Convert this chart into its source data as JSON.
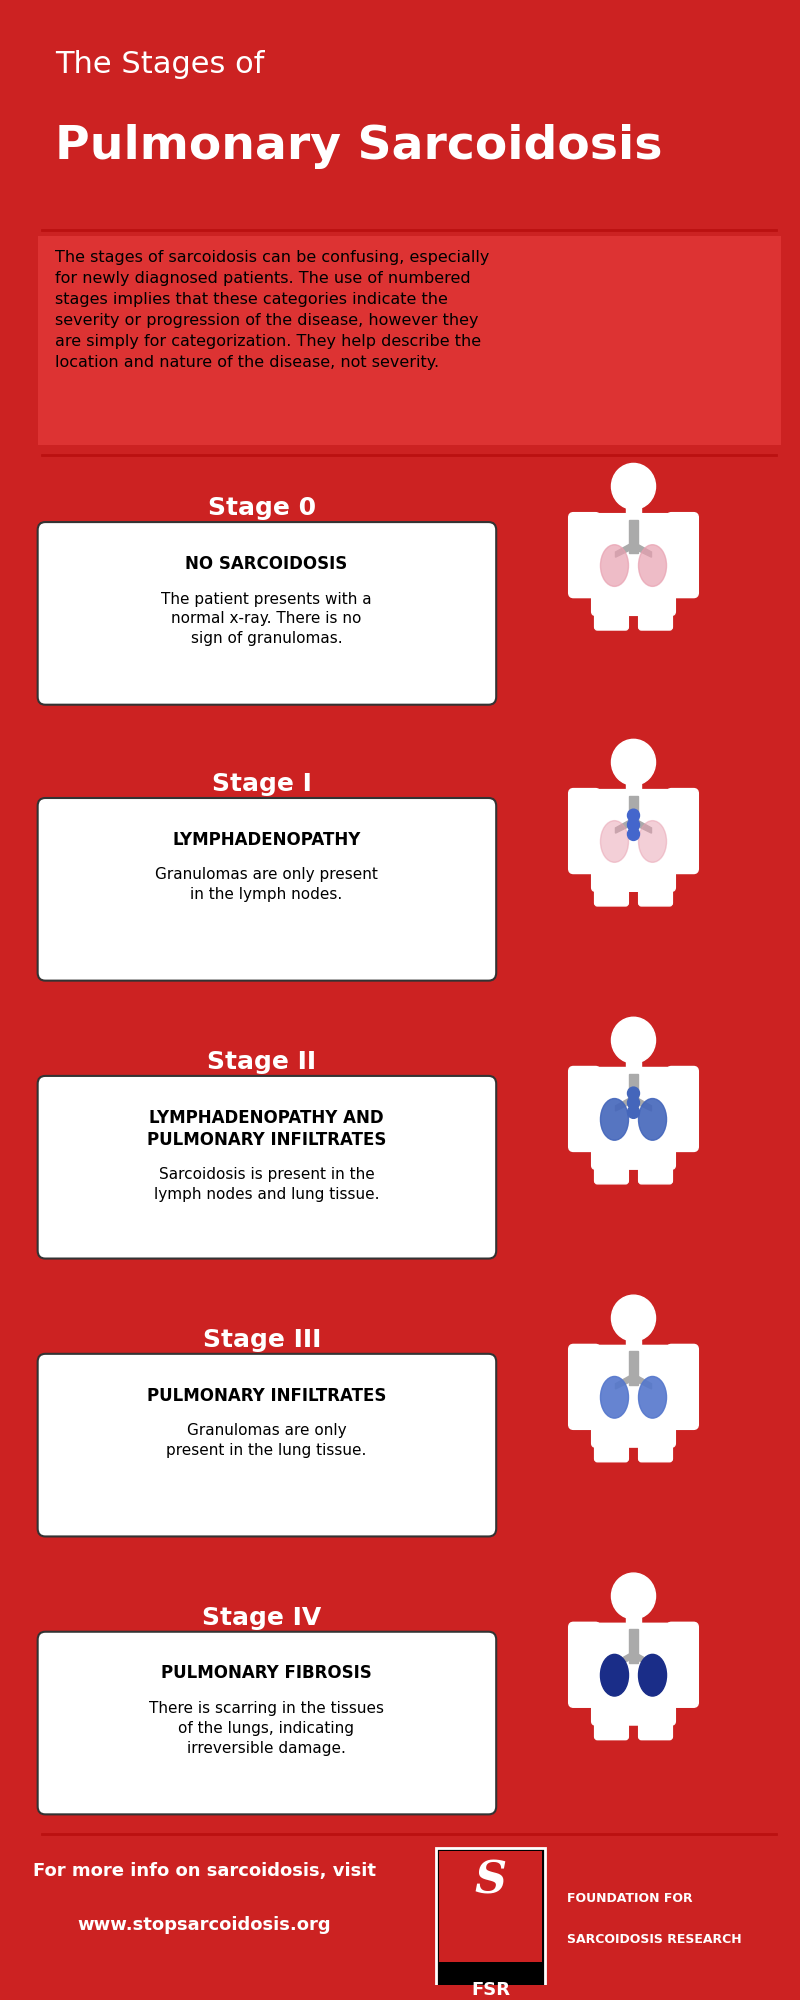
{
  "bg_color": "#CC2222",
  "white": "#FFFFFF",
  "black": "#000000",
  "gray": "#AAAAAA",
  "title_line1": "The Stages of",
  "title_line2": "Pulmonary Sarcoidosis",
  "intro_text": "The stages of sarcoidosis can be confusing, especially\nfor newly diagnosed patients. The use of numbered\nstages implies that these categories indicate the\nseverity or progression of the disease, however they\nare simply for categorization. They help describe the\nlocation and nature of the disease, not severity.",
  "stages": [
    {
      "stage_label": "Stage 0",
      "heading": "NO SARCOIDOSIS",
      "body": "The patient presents with a\nnormal x-ray. There is no\nsign of granulomas.",
      "lung_color": "#E8A0B0",
      "lymph_color": "#CCCCCC",
      "has_lymph": false,
      "has_lung": true,
      "lung_alpha": 0.7
    },
    {
      "stage_label": "Stage I",
      "heading": "LYMPHADENOPATHY",
      "body": "Granulomas are only present\nin the lymph nodes.",
      "lung_color": "#E8A0B0",
      "lymph_color": "#4466CC",
      "has_lymph": true,
      "has_lung": false,
      "lung_alpha": 0.5
    },
    {
      "stage_label": "Stage II",
      "heading": "LYMPHADENOPATHY AND\nPULMONARY INFILTRATES",
      "body": "Sarcoidosis is present in the\nlymph nodes and lung tissue.",
      "lung_color": "#4466BB",
      "lymph_color": "#4466BB",
      "has_lymph": true,
      "has_lung": true,
      "lung_alpha": 0.9
    },
    {
      "stage_label": "Stage III",
      "heading": "PULMONARY INFILTRATES",
      "body": "Granulomas are only\npresent in the lung tissue.",
      "lung_color": "#5577CC",
      "lymph_color": "#CCCCCC",
      "has_lymph": false,
      "has_lung": true,
      "lung_alpha": 0.9
    },
    {
      "stage_label": "Stage IV",
      "heading": "PULMONARY FIBROSIS",
      "body": "There is scarring in the tissues\nof the lungs, indicating\nirreversible damage.",
      "lung_color": "#1A2D88",
      "lymph_color": "#CCCCCC",
      "has_lymph": false,
      "has_lung": true,
      "lung_alpha": 1.0
    }
  ],
  "footer_line1": "For more info on sarcoidosis, visit",
  "footer_line2": "www.stopsarcoidosis.org",
  "fsr_line1": "FOUNDATION FOR",
  "fsr_line2": "SARCOIDOSIS RESEARCH"
}
